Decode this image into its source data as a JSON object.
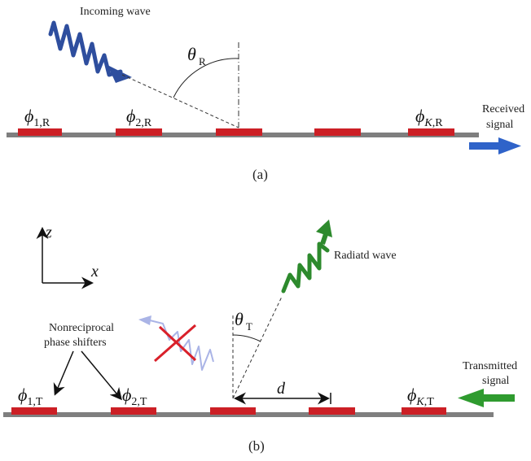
{
  "panel_a": {
    "caption": "(a)",
    "incoming_label": "Incoming wave",
    "theta_symbol": "θ",
    "theta_sub": "R",
    "received_line1": "Received",
    "received_line2": "signal",
    "phi_labels": [
      {
        "sym": "ϕ",
        "sub": "1,R",
        "italic_k": false
      },
      {
        "sym": "ϕ",
        "sub": "2,R",
        "italic_k": false
      },
      {
        "sym": "ϕ",
        "sub": ",R",
        "italic_k": true,
        "k": "K"
      }
    ]
  },
  "panel_b": {
    "caption": "(b)",
    "radiated_label": "Radiatd wave",
    "theta_symbol": "θ",
    "theta_sub": "T",
    "transmitted_line1": "Transmitted",
    "transmitted_line2": "signal",
    "nonreciprocal_line1": "Nonreciprocal",
    "nonreciprocal_line2": "phase shifters",
    "d_label": "d",
    "axis_z": "z",
    "axis_x": "x",
    "phi_labels": [
      {
        "sym": "ϕ",
        "sub": "1,T",
        "italic_k": false
      },
      {
        "sym": "ϕ",
        "sub": "2,T",
        "italic_k": false
      },
      {
        "sym": "ϕ",
        "sub": ",T",
        "italic_k": true,
        "k": "K"
      }
    ]
  },
  "colors": {
    "substrate": "#7f7f7f",
    "element": "#cc1f25",
    "incoming_wave": "#2e4e9e",
    "received_arrow": "#2f63c9",
    "radiated_wave": "#2d8a2d",
    "transmitted_arrow": "#2f9b2f",
    "blocked_wave": "#aab4e6",
    "cross": "#d9202a"
  }
}
